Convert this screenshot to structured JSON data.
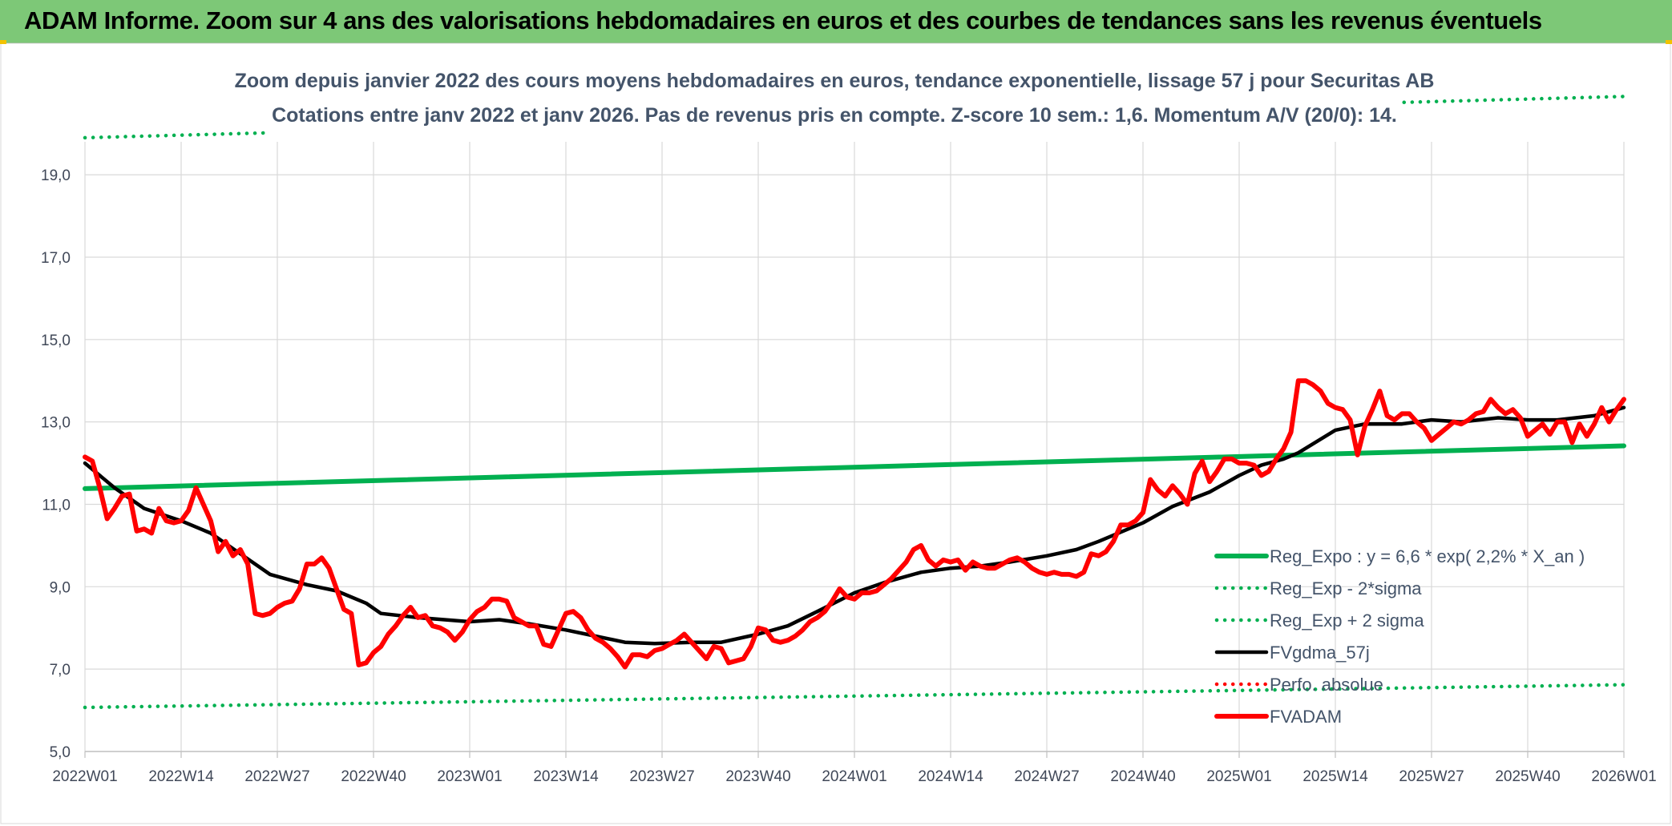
{
  "banner": {
    "title": "ADAM Informe. Zoom sur 4 ans des valorisations hebdomadaires en euros et des courbes de tendances sans les revenus éventuels"
  },
  "colors": {
    "banner_bg": "#7dc877",
    "reg_expo": "#00b050",
    "fvgdma": "#000000",
    "fvadam": "#ff0000",
    "perfo": "#ff0000"
  },
  "chart_data": {
    "type": "line",
    "title_lines": [
      "Zoom depuis janvier 2022 des cours moyens hebdomadaires en euros, tendance exponentielle, lissage 57 j pour Securitas AB",
      "Cotations entre janv 2022 et janv 2026. Pas de revenus pris en compte. Z-score 10 sem.: 1,6. Momentum A/V (20/0): 14."
    ],
    "xlabel": "",
    "ylabel": "",
    "ylim": [
      5.0,
      19.0
    ],
    "y_ticks": [
      "5,0",
      "7,0",
      "9,0",
      "11,0",
      "13,0",
      "15,0",
      "17,0",
      "19,0"
    ],
    "x_ticks": [
      "2022W01",
      "2022W14",
      "2022W27",
      "2022W40",
      "2023W01",
      "2023W14",
      "2023W27",
      "2023W40",
      "2024W01",
      "2024W14",
      "2024W27",
      "2024W40",
      "2025W01",
      "2025W14",
      "2025W27",
      "2025W40",
      "2026W01"
    ],
    "grid": true,
    "legend_position": "bottom-right",
    "legend": [
      {
        "label": "Reg_Expo : y = 6,6 * exp( 2,2% *  X_an )",
        "style": "solid-thick",
        "color": "#00b050"
      },
      {
        "label": "Reg_Exp - 2*sigma",
        "style": "dotted",
        "color": "#00b050"
      },
      {
        "label": "Reg_Exp + 2 sigma",
        "style": "dotted",
        "color": "#00b050"
      },
      {
        "label": "FVgdma_57j",
        "style": "solid",
        "color": "#000000"
      },
      {
        "label": "Perfo. absolue",
        "style": "dotted",
        "color": "#ff0000"
      },
      {
        "label": "FVADAM",
        "style": "solid-thick",
        "color": "#ff0000"
      }
    ],
    "series": [
      {
        "name": "Reg_Expo : y = 6,6 * exp( 2,2% *  X_an )",
        "x_week_index": [
          0,
          208
        ],
        "y": [
          11.38,
          12.42
        ]
      },
      {
        "name": "Reg_Exp - 2*sigma",
        "x_week_index": [
          0,
          208
        ],
        "y": [
          6.07,
          6.62
        ]
      },
      {
        "name": "Reg_Exp + 2 sigma",
        "x_week_index": [
          0,
          208
        ],
        "y": [
          19.9,
          20.9
        ]
      },
      {
        "name": "FVgdma_57j",
        "x_week_index": [
          0,
          4,
          8,
          13,
          17,
          21,
          25,
          30,
          34,
          38,
          40,
          45,
          52,
          56,
          60,
          65,
          69,
          73,
          77,
          82,
          86,
          91,
          95,
          99,
          104,
          108,
          113,
          117,
          121,
          125,
          130,
          134,
          137,
          143,
          147,
          152,
          156,
          159,
          162,
          164,
          169,
          173,
          178,
          182,
          186,
          191,
          195,
          199,
          204,
          208
        ],
        "y": [
          12.0,
          11.4,
          10.9,
          10.6,
          10.3,
          9.8,
          9.3,
          9.05,
          8.9,
          8.6,
          8.35,
          8.25,
          8.15,
          8.2,
          8.1,
          7.95,
          7.8,
          7.65,
          7.62,
          7.65,
          7.65,
          7.85,
          8.05,
          8.4,
          8.85,
          9.1,
          9.35,
          9.45,
          9.5,
          9.6,
          9.75,
          9.9,
          10.1,
          10.55,
          10.95,
          11.3,
          11.7,
          11.95,
          12.1,
          12.25,
          12.8,
          12.95,
          12.95,
          13.05,
          13.0,
          13.1,
          13.05,
          13.05,
          13.15,
          13.35
        ]
      },
      {
        "name": "FVADAM",
        "x_week_index": [
          0,
          1,
          2,
          3,
          4,
          5,
          6,
          7,
          8,
          9,
          10,
          11,
          12,
          13,
          14,
          15,
          16,
          17,
          18,
          19,
          20,
          21,
          22,
          23,
          24,
          25,
          26,
          27,
          28,
          29,
          30,
          31,
          32,
          33,
          34,
          35,
          36,
          37,
          38,
          39,
          40,
          41,
          42,
          43,
          44,
          45,
          46,
          47,
          48,
          49,
          50,
          51,
          52,
          53,
          54,
          55,
          56,
          57,
          58,
          59,
          60,
          61,
          62,
          63,
          64,
          65,
          66,
          67,
          68,
          69,
          70,
          71,
          72,
          73,
          74,
          75,
          76,
          77,
          78,
          79,
          80,
          81,
          82,
          83,
          84,
          85,
          86,
          87,
          88,
          89,
          90,
          91,
          92,
          93,
          94,
          95,
          96,
          97,
          98,
          99,
          100,
          101,
          102,
          103,
          104,
          105,
          106,
          107,
          108,
          109,
          110,
          111,
          112,
          113,
          114,
          115,
          116,
          117,
          118,
          119,
          120,
          121,
          122,
          123,
          124,
          125,
          126,
          127,
          128,
          129,
          130,
          131,
          132,
          133,
          134,
          135,
          136,
          137,
          138,
          139,
          140,
          141,
          142,
          143,
          144,
          145,
          146,
          147,
          148,
          149,
          150,
          151,
          152,
          153,
          154,
          155,
          156,
          157,
          158,
          159,
          160,
          161,
          162,
          163,
          164,
          165,
          166,
          167,
          168,
          169,
          170,
          171,
          172,
          173,
          174,
          175,
          176,
          177,
          178,
          179,
          180,
          181,
          182,
          183,
          184,
          185,
          186,
          187,
          188,
          189,
          190,
          191,
          192,
          193,
          194,
          195,
          196,
          197,
          198,
          199,
          200,
          201,
          202,
          203,
          204,
          205,
          206,
          207,
          208
        ],
        "y": [
          12.15,
          12.05,
          11.4,
          10.65,
          10.9,
          11.2,
          11.25,
          10.35,
          10.4,
          10.3,
          10.9,
          10.6,
          10.55,
          10.6,
          10.85,
          11.4,
          11.0,
          10.6,
          9.85,
          10.1,
          9.75,
          9.9,
          9.55,
          8.35,
          8.3,
          8.35,
          8.5,
          8.6,
          8.65,
          8.95,
          9.55,
          9.55,
          9.7,
          9.45,
          8.95,
          8.45,
          8.35,
          7.1,
          7.15,
          7.4,
          7.55,
          7.85,
          8.05,
          8.3,
          8.5,
          8.25,
          8.3,
          8.05,
          8.0,
          7.9,
          7.7,
          7.9,
          8.2,
          8.4,
          8.5,
          8.7,
          8.7,
          8.65,
          8.25,
          8.15,
          8.05,
          8.05,
          7.6,
          7.55,
          7.95,
          8.35,
          8.4,
          8.25,
          7.95,
          7.75,
          7.65,
          7.5,
          7.3,
          7.05,
          7.35,
          7.35,
          7.3,
          7.45,
          7.5,
          7.6,
          7.7,
          7.85,
          7.65,
          7.45,
          7.25,
          7.55,
          7.5,
          7.15,
          7.2,
          7.25,
          7.55,
          8.0,
          7.95,
          7.7,
          7.65,
          7.7,
          7.8,
          7.95,
          8.15,
          8.25,
          8.4,
          8.65,
          8.95,
          8.75,
          8.7,
          8.85,
          8.85,
          8.9,
          9.05,
          9.2,
          9.4,
          9.6,
          9.9,
          10.0,
          9.65,
          9.5,
          9.65,
          9.6,
          9.65,
          9.4,
          9.6,
          9.5,
          9.45,
          9.45,
          9.55,
          9.65,
          9.7,
          9.6,
          9.45,
          9.35,
          9.3,
          9.35,
          9.3,
          9.3,
          9.25,
          9.35,
          9.8,
          9.75,
          9.85,
          10.1,
          10.5,
          10.5,
          10.6,
          10.8,
          11.6,
          11.35,
          11.2,
          11.45,
          11.25,
          11.0,
          11.75,
          12.05,
          11.55,
          11.8,
          12.1,
          12.1,
          12.0,
          12.0,
          11.95,
          11.7,
          11.8,
          12.1,
          12.35,
          12.75,
          14.0,
          14.0,
          13.9,
          13.75,
          13.45,
          13.35,
          13.3,
          13.05,
          12.2,
          12.9,
          13.3,
          13.75,
          13.15,
          13.05,
          13.2,
          13.2,
          13.0,
          12.85,
          12.55,
          12.7,
          12.85,
          13.0,
          12.95,
          13.05,
          13.2,
          13.25,
          13.55,
          13.35,
          13.2,
          13.3,
          13.1,
          12.65,
          12.8,
          12.95,
          12.7,
          13.0,
          13.0,
          12.5,
          12.95,
          12.65,
          12.95,
          13.35,
          13.0,
          13.3,
          13.55
        ]
      }
    ]
  }
}
